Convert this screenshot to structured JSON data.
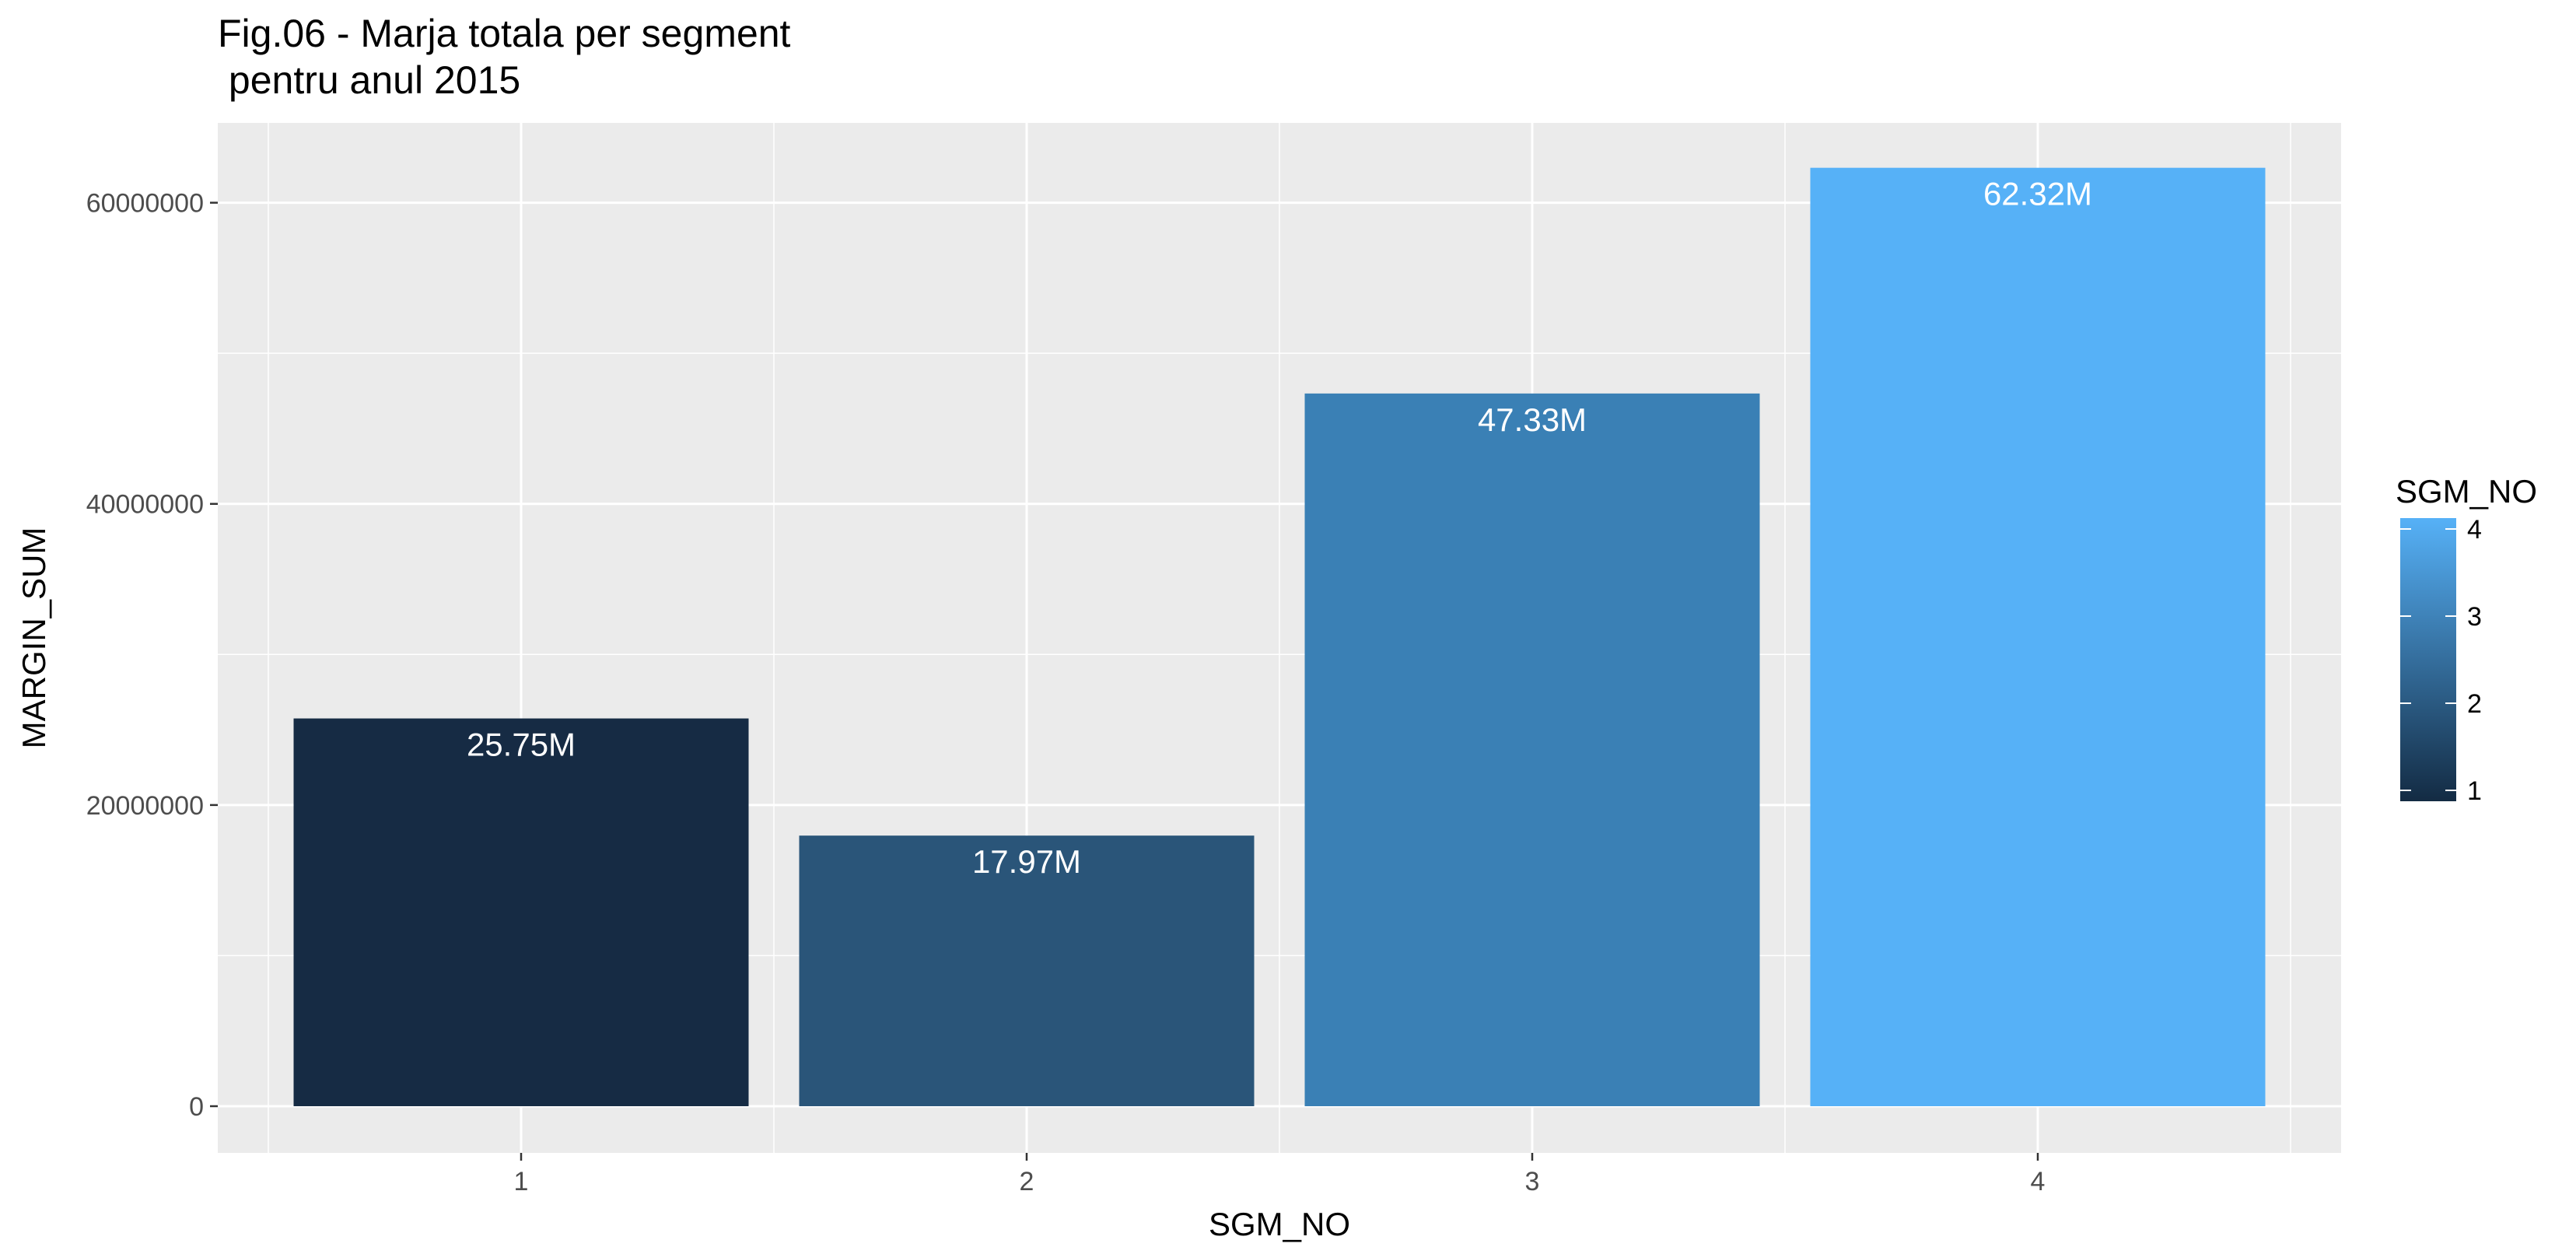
{
  "chart_data": {
    "type": "bar",
    "title_line1": "Fig.06 - Marja totala per segment",
    "title_line2": " pentru anul 2015",
    "xlabel": "SGM_NO",
    "ylabel": "MARGIN_SUM",
    "categories": [
      "1",
      "2",
      "3",
      "4"
    ],
    "values": [
      25750000,
      17970000,
      47330000,
      62320000
    ],
    "data_labels": [
      "25.75M",
      "17.97M",
      "47.33M",
      "62.32M"
    ],
    "colors": [
      "#162b44",
      "#2a5579",
      "#3a80b5",
      "#56b1f7"
    ],
    "ylim": [
      -3100000,
      65300000
    ],
    "yticks": [
      0,
      20000000,
      40000000,
      60000000
    ],
    "ytick_labels": [
      "0",
      "20000000",
      "40000000",
      "60000000"
    ],
    "grid": true,
    "panel_background": "#ebebeb",
    "legend": {
      "title": "SGM_NO",
      "position": "right",
      "labels": [
        "4",
        "3",
        "2",
        "1"
      ],
      "gradient_low": "#132b43",
      "gradient_high": "#56b1f7"
    }
  }
}
